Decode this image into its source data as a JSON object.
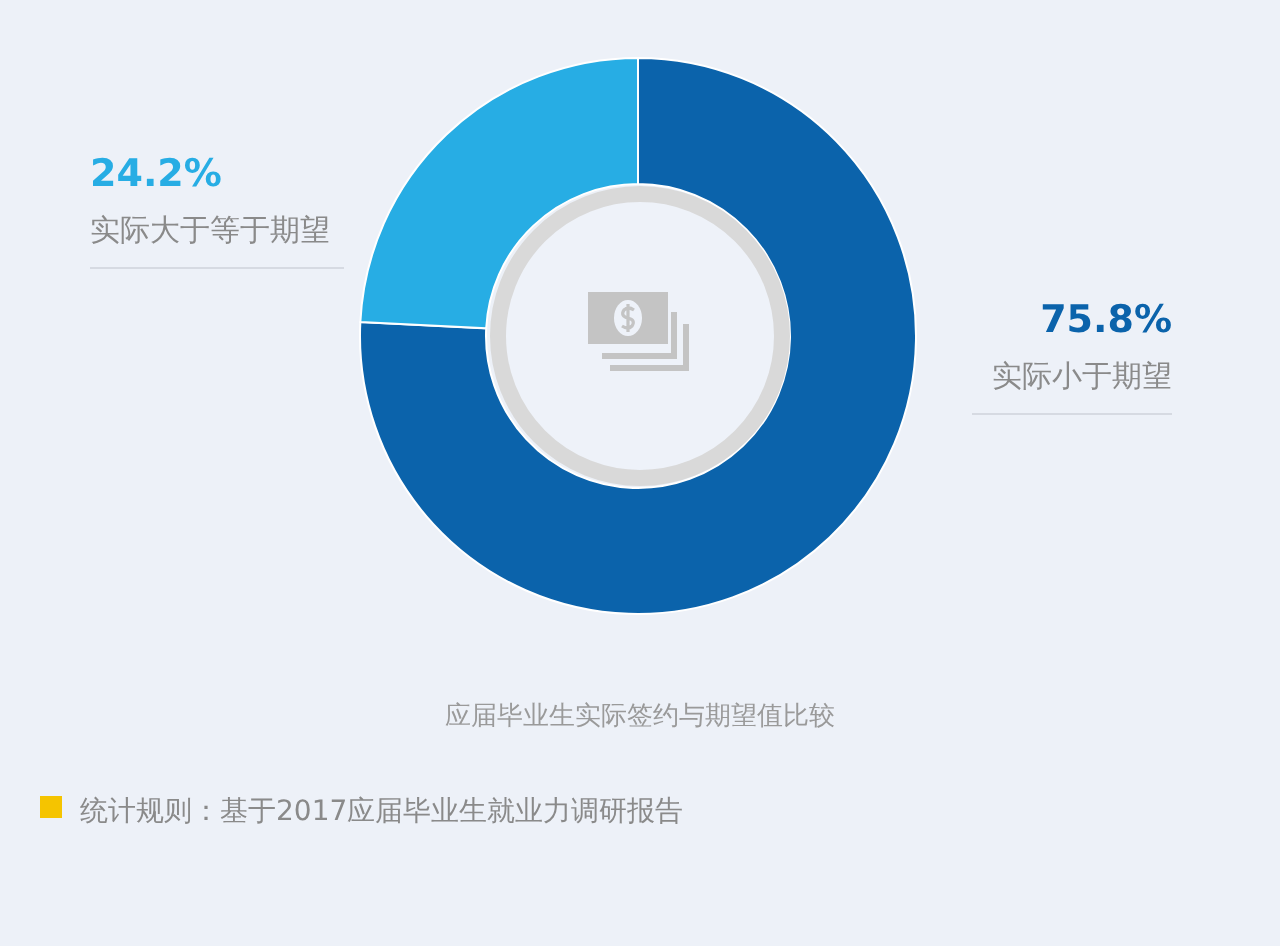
{
  "chart_data": {
    "type": "donut",
    "title": "应届毕业生实际签约与期望值比较",
    "categories": [
      "实际小于期望",
      "实际大于等于期望"
    ],
    "values": [
      75.8,
      24.2
    ],
    "value_labels": [
      "75.8%",
      "24.2%"
    ],
    "colors": [
      "#0b63ab",
      "#27ade4"
    ],
    "annotations": [
      "统计规则：基于2017应届毕业生就业力调研报告"
    ]
  }
}
